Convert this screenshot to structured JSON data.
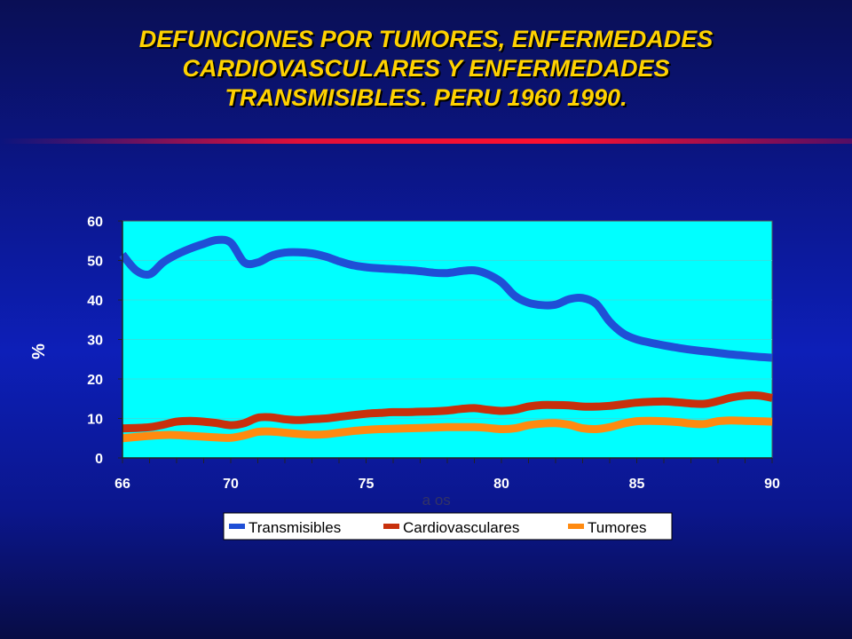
{
  "slide": {
    "title_lines": [
      "DEFUNCIONES POR TUMORES, ENFERMEDADES",
      "CARDIOVASCULARES  Y ENFERMEDADES",
      "TRANSMISIBLES.  PERU 1960 1990."
    ]
  },
  "colors": {
    "title": "#ffd200",
    "plot_bg": "#00ffff",
    "transmisibles": "#1f4fd6",
    "cardiovasculares": "#c8300c",
    "tumores": "#ff8a10",
    "accent_line": "#ff1030"
  },
  "chart_data": {
    "type": "line",
    "xlabel": "a os",
    "ylabel": "%",
    "xlim": [
      66,
      90
    ],
    "ylim": [
      0,
      60
    ],
    "x_ticks": [
      "66",
      "70",
      "75",
      "80",
      "85",
      "90"
    ],
    "y_ticks": [
      "0",
      "10",
      "20",
      "30",
      "40",
      "50",
      "60"
    ],
    "legend_position": "bottom",
    "grid": false,
    "x": [
      66,
      66.5,
      67,
      67.5,
      68,
      68.5,
      69,
      69.5,
      70,
      70.5,
      71,
      71.5,
      72,
      72.5,
      73,
      73.5,
      74,
      74.5,
      75,
      75.5,
      76,
      76.5,
      77,
      77.5,
      78,
      78.5,
      79,
      79.5,
      80,
      80.5,
      81,
      81.5,
      82,
      82.5,
      83,
      83.5,
      84,
      84.5,
      85,
      85.5,
      86,
      86.5,
      87,
      87.5,
      88,
      88.5,
      89,
      89.5,
      90
    ],
    "series": [
      {
        "name": "Transmisibles",
        "values": [
          51.5,
          47.5,
          46.5,
          49.5,
          51.5,
          53,
          54.2,
          55.2,
          54.5,
          49.5,
          49.5,
          51.2,
          52,
          52.1,
          51.8,
          51,
          49.8,
          48.8,
          48.3,
          48,
          47.8,
          47.6,
          47.3,
          46.9,
          46.8,
          47.3,
          47.5,
          46.5,
          44.5,
          41,
          39.3,
          38.7,
          38.8,
          40.2,
          40.5,
          39,
          34.5,
          31.5,
          30,
          29.2,
          28.5,
          27.9,
          27.4,
          27,
          26.6,
          26.2,
          25.9,
          25.6,
          25.4
        ]
      },
      {
        "name": "Cardiovasculares",
        "values": [
          7.5,
          7.6,
          7.8,
          8.4,
          9.2,
          9.4,
          9.2,
          8.8,
          8.3,
          8.8,
          10.2,
          10.3,
          9.8,
          9.6,
          9.8,
          10,
          10.4,
          10.8,
          11.2,
          11.4,
          11.6,
          11.6,
          11.7,
          11.8,
          12,
          12.4,
          12.6,
          12.2,
          11.9,
          12.2,
          13,
          13.4,
          13.4,
          13.3,
          13,
          13,
          13.2,
          13.6,
          14,
          14.2,
          14.3,
          14.1,
          13.8,
          13.7,
          14.4,
          15.3,
          15.8,
          15.8,
          15.2
        ]
      },
      {
        "name": "Tumores",
        "values": [
          5,
          5.3,
          5.6,
          5.8,
          5.8,
          5.6,
          5.4,
          5.2,
          5.1,
          5.7,
          6.6,
          6.7,
          6.4,
          6.1,
          5.9,
          6,
          6.4,
          6.8,
          7.1,
          7.3,
          7.4,
          7.5,
          7.6,
          7.7,
          7.8,
          7.8,
          7.8,
          7.6,
          7.3,
          7.5,
          8.3,
          8.7,
          8.8,
          8.4,
          7.5,
          7.3,
          7.8,
          8.7,
          9.3,
          9.4,
          9.3,
          9.1,
          8.7,
          8.6,
          9.3,
          9.5,
          9.4,
          9.3,
          9.2
        ]
      }
    ]
  }
}
